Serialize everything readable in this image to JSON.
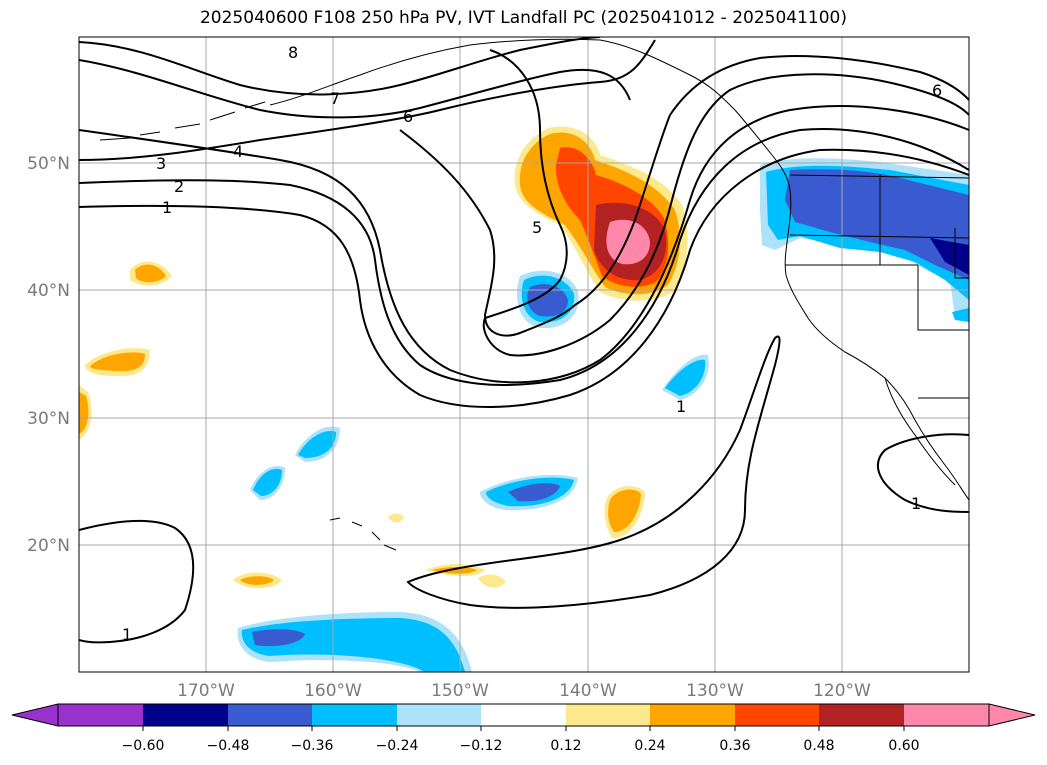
{
  "title": "2025040600 F108 250 hPa PV, IVT Landfall PC (2025041012 - 2025041100)",
  "map": {
    "projection": "PlateCarree",
    "lon_range": [
      -180,
      -110
    ],
    "lat_range": [
      10,
      60
    ],
    "gridlines": true
  },
  "axes": {
    "lon_ticks": [
      "170°W",
      "160°W",
      "150°W",
      "140°W",
      "130°W",
      "120°W"
    ],
    "lat_ticks": [
      "50°N",
      "40°N",
      "30°N",
      "20°N"
    ]
  },
  "contour_labels": [
    "8",
    "7",
    "6",
    "4",
    "3",
    "2",
    "1",
    "5",
    "1",
    "1",
    "1",
    "6"
  ],
  "colorbar": {
    "ticks": [
      "−0.60",
      "−0.48",
      "−0.36",
      "−0.24",
      "−0.12",
      "0.12",
      "0.24",
      "0.36",
      "0.48",
      "0.60"
    ],
    "colors": [
      "#9932cc",
      "#00008b",
      "#3a5bcf",
      "#00bfff",
      "#ade2fb",
      "#ffffff",
      "#fde98d",
      "#ffa500",
      "#ff4500",
      "#b22222",
      "#ff88aa",
      "#ff88aa"
    ],
    "extend": "both"
  }
}
